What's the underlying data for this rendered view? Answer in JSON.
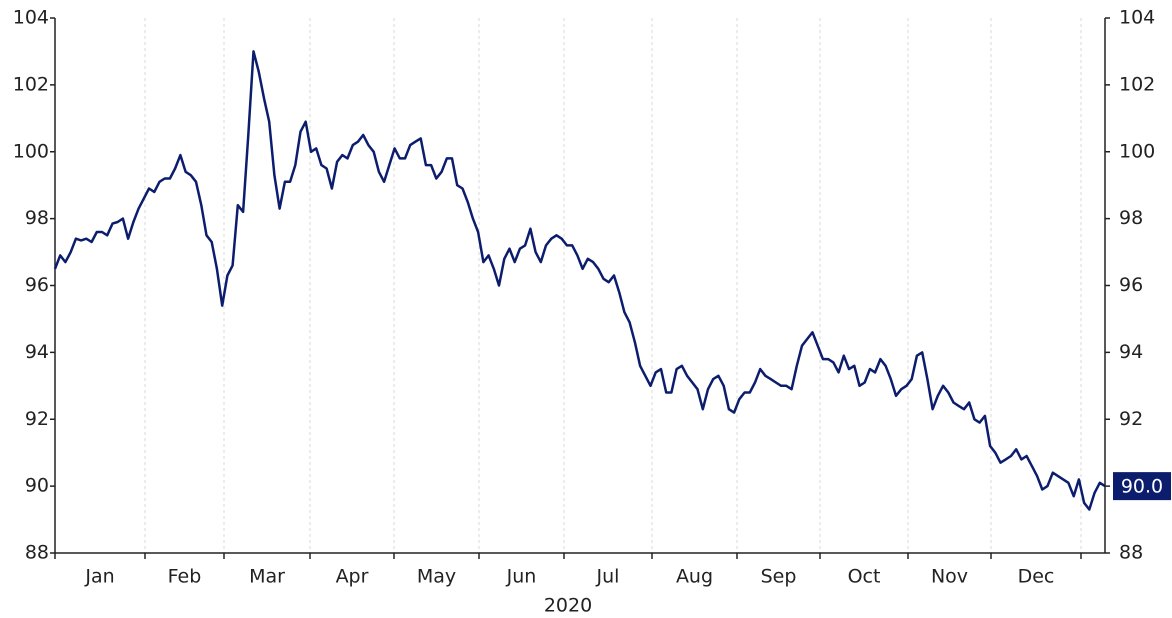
{
  "chart_data": {
    "type": "line",
    "x_label": "2020",
    "months": [
      "Jan",
      "Feb",
      "Mar",
      "Apr",
      "May",
      "Jun",
      "Jul",
      "Aug",
      "Sep",
      "Oct",
      "Nov",
      "Dec"
    ],
    "color": "#0c1d6e",
    "values": [
      96.5,
      96.9,
      96.7,
      97.0,
      97.4,
      97.35,
      97.4,
      97.3,
      97.6,
      97.6,
      97.5,
      97.85,
      97.9,
      98.0,
      97.4,
      97.9,
      98.3,
      98.6,
      98.9,
      98.8,
      99.1,
      99.2,
      99.2,
      99.5,
      99.9,
      99.4,
      99.3,
      99.1,
      98.4,
      97.5,
      97.3,
      96.5,
      95.4,
      96.3,
      96.6,
      98.4,
      98.2,
      100.5,
      103.0,
      102.4,
      101.6,
      100.9,
      99.3,
      98.3,
      99.1,
      99.1,
      99.6,
      100.6,
      100.9,
      100.0,
      100.1,
      99.6,
      99.5,
      98.9,
      99.7,
      99.9,
      99.8,
      100.2,
      100.3,
      100.5,
      100.2,
      100.0,
      99.4,
      99.1,
      99.6,
      100.1,
      99.8,
      99.8,
      100.2,
      100.3,
      100.4,
      99.6,
      99.6,
      99.2,
      99.4,
      99.8,
      99.8,
      99.0,
      98.9,
      98.5,
      98.0,
      97.6,
      96.7,
      96.9,
      96.5,
      96.0,
      96.8,
      97.1,
      96.7,
      97.1,
      97.2,
      97.7,
      97.0,
      96.7,
      97.2,
      97.4,
      97.5,
      97.4,
      97.2,
      97.2,
      96.9,
      96.5,
      96.8,
      96.7,
      96.5,
      96.2,
      96.1,
      96.3,
      95.8,
      95.2,
      94.9,
      94.3,
      93.6,
      93.3,
      93.0,
      93.4,
      93.5,
      92.8,
      92.8,
      93.5,
      93.6,
      93.3,
      93.1,
      92.9,
      92.3,
      92.9,
      93.2,
      93.3,
      93.0,
      92.3,
      92.2,
      92.6,
      92.8,
      92.8,
      93.1,
      93.5,
      93.3,
      93.2,
      93.1,
      93.0,
      93.0,
      92.9,
      93.6,
      94.2,
      94.4,
      94.6,
      94.2,
      93.8,
      93.8,
      93.7,
      93.4,
      93.9,
      93.5,
      93.6,
      93.0,
      93.1,
      93.5,
      93.4,
      93.8,
      93.6,
      93.2,
      92.7,
      92.9,
      93.0,
      93.2,
      93.9,
      94.0,
      93.2,
      92.3,
      92.7,
      93.0,
      92.8,
      92.5,
      92.4,
      92.3,
      92.5,
      92.0,
      91.9,
      92.1,
      91.2,
      91.0,
      90.7,
      90.8,
      90.9,
      91.1,
      90.8,
      90.9,
      90.6,
      90.3,
      89.9,
      90.0,
      90.4,
      90.3,
      90.2,
      90.1,
      89.7,
      90.2,
      89.5,
      89.3,
      89.8,
      90.1,
      90.0
    ],
    "end_label": {
      "value": 90.0,
      "label": "90.0"
    },
    "ylim": [
      88,
      104
    ],
    "yticks": [
      88,
      90,
      92,
      94,
      96,
      98,
      100,
      102,
      104
    ],
    "grid": true
  }
}
